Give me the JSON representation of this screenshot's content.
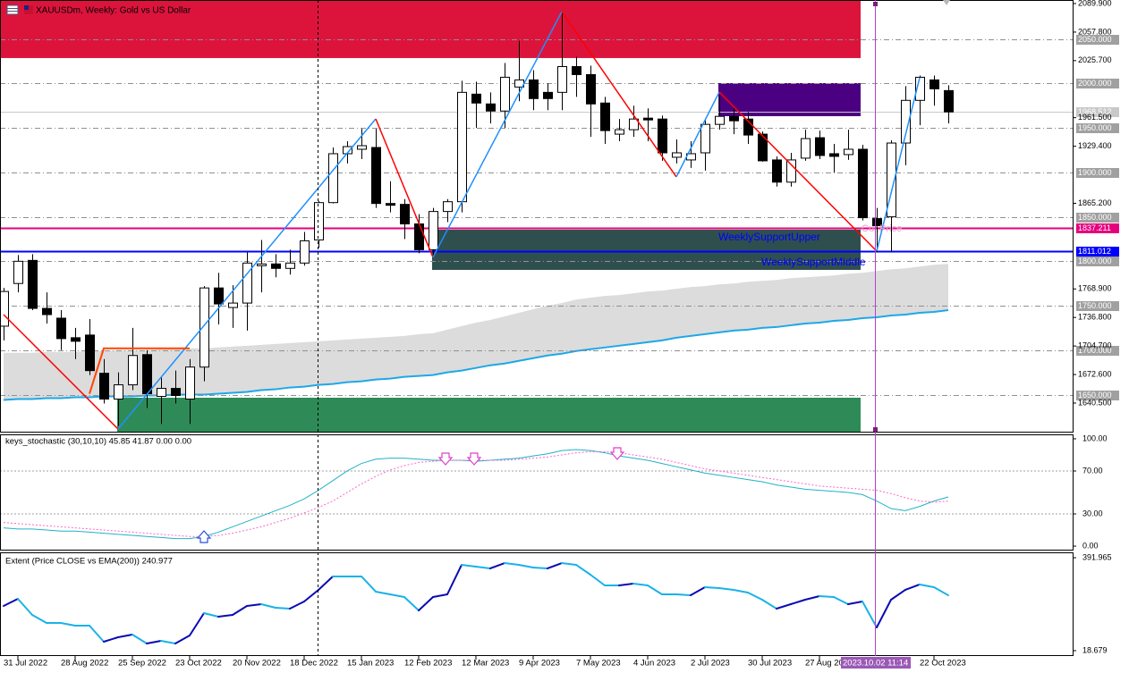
{
  "header": "XAUUSDm, Weekly:  Gold vs US Dollar",
  "chart_data": [
    {
      "type": "candlestick",
      "categories": [
        null,
        "31 Jul 2022",
        null,
        null,
        null,
        "28 Aug 2022",
        null,
        null,
        null,
        "25 Sep 2022",
        null,
        null,
        null,
        "23 Oct 2022",
        null,
        null,
        null,
        "20 Nov 2022",
        null,
        null,
        null,
        "18 Dec 2022",
        null,
        null,
        null,
        "15 Jan 2023",
        null,
        null,
        null,
        "12 Feb 2023",
        null,
        null,
        null,
        "12 Mar 2023",
        null,
        null,
        null,
        "9 Apr 2023",
        null,
        null,
        null,
        "7 May 2023",
        null,
        null,
        null,
        "4 Jun 2023",
        null,
        null,
        null,
        "2 Jul 2023",
        null,
        null,
        null,
        "30 Jul 2023",
        null,
        null,
        null,
        "27 Aug 2023",
        null,
        null,
        null,
        null,
        null,
        null,
        null,
        "22 Oct 2023",
        null
      ],
      "open": [
        1727,
        1775,
        1801,
        1747,
        1736,
        1714,
        1717,
        1674,
        1645,
        1661,
        1695,
        1648,
        1657,
        1645,
        1681,
        1770,
        1748,
        1753,
        1795,
        1797,
        1792,
        1798,
        1824,
        1866,
        1921,
        1926,
        1928,
        1865,
        1864,
        1842,
        1813,
        1856,
        1867,
        1988,
        1977,
        1969,
        1996,
        2004,
        1990,
        1990,
        2019,
        2010,
        1978,
        1943,
        1948,
        1961,
        1960,
        1917,
        1914,
        1922,
        1954,
        1963,
        1960,
        1943,
        1914,
        1889,
        1916,
        1939,
        1921,
        1920,
        1926,
        1848,
        1850,
        1933,
        1981,
        2004,
        1992
      ],
      "high": [
        1770,
        1807,
        1808,
        1765,
        1745,
        1725,
        1735,
        1690,
        1675,
        1725,
        1700,
        1670,
        1677,
        1690,
        1772,
        1787,
        1773,
        1810,
        1824,
        1808,
        1813,
        1833,
        1868,
        1928,
        1935,
        1949,
        1949,
        1890,
        1870,
        1853,
        1860,
        1870,
        2003,
        2002,
        1990,
        2023,
        2048,
        2015,
        2000,
        2081,
        2030,
        2020,
        1985,
        1960,
        1975,
        1972,
        1964,
        1937,
        1935,
        1960,
        1987,
        1973,
        1968,
        1946,
        1918,
        1922,
        1948,
        1947,
        1932,
        1948,
        1931,
        1860,
        1936,
        1997,
        2009,
        2009,
        1998
      ],
      "low": [
        1711,
        1765,
        1745,
        1730,
        1700,
        1690,
        1672,
        1640,
        1615,
        1655,
        1635,
        1617,
        1640,
        1617,
        1665,
        1729,
        1725,
        1722,
        1765,
        1782,
        1785,
        1795,
        1815,
        1865,
        1910,
        1915,
        1860,
        1855,
        1825,
        1809,
        1805,
        1844,
        1855,
        1950,
        1955,
        1950,
        1980,
        1970,
        1970,
        1970,
        1985,
        1940,
        1932,
        1935,
        1940,
        1935,
        1913,
        1910,
        1905,
        1902,
        1948,
        1943,
        1932,
        1912,
        1884,
        1884,
        1913,
        1915,
        1900,
        1914,
        1846,
        1810,
        1810,
        1908,
        1953,
        1975,
        1955
      ],
      "close": [
        1766,
        1800,
        1747,
        1740,
        1713,
        1710,
        1677,
        1645,
        1661,
        1694,
        1651,
        1657,
        1649,
        1681,
        1770,
        1752,
        1753,
        1798,
        1797,
        1792,
        1798,
        1823,
        1866,
        1921,
        1929,
        1930,
        1865,
        1863,
        1842,
        1813,
        1856,
        1867,
        1990,
        1978,
        1969,
        2007,
        2004,
        1983,
        1983,
        2019,
        2010,
        1977,
        1947,
        1948,
        1960,
        1959,
        1922,
        1922,
        1921,
        1954,
        1963,
        1958,
        1942,
        1913,
        1889,
        1914,
        1938,
        1919,
        1918,
        1926,
        1849,
        1840,
        1933,
        1981,
        2007,
        1994,
        1968
      ],
      "ylim": [
        1608.3,
        2093.9
      ],
      "yticks": [
        {
          "value": 2089.9,
          "label": "2089.900"
        },
        {
          "value": 2057.8,
          "label": "2057.800"
        },
        {
          "value": 2025.7,
          "label": "2025.700"
        },
        {
          "value": 1961.5,
          "label": "1961.500"
        },
        {
          "value": 1929.4,
          "label": "1929.400"
        },
        {
          "value": 1865.2,
          "label": "1865.200"
        },
        {
          "value": 1768.9,
          "label": "1768.900"
        },
        {
          "value": 1736.8,
          "label": "1736.800"
        },
        {
          "value": 1704.7,
          "label": "1704.700"
        },
        {
          "value": 1672.6,
          "label": "1672.600"
        },
        {
          "value": 1640.5,
          "label": "1640.500"
        }
      ],
      "levels": [
        {
          "value": 2050,
          "label": "2050.000"
        },
        {
          "value": 2000,
          "label": "2000.000"
        },
        {
          "value": 1950,
          "label": "1950.000"
        },
        {
          "value": 1900,
          "label": "1900.000"
        },
        {
          "value": 1850,
          "label": "1850.000"
        },
        {
          "value": 1800,
          "label": "1800.000"
        },
        {
          "value": 1750,
          "label": "1750.000"
        },
        {
          "value": 1700,
          "label": "1700.000"
        },
        {
          "value": 1650,
          "label": "1650.000"
        }
      ],
      "level_color": "#a0a0a0",
      "lines": [
        {
          "value": 1968.512,
          "label": "1968.512",
          "color": "#c8c8c8"
        },
        {
          "value": 1837.211,
          "label": "1837.211",
          "color": "#e6007e"
        },
        {
          "value": 1811.012,
          "label": "1811.012",
          "color": "#0000ff"
        }
      ],
      "zones": [
        {
          "top": 2093.9,
          "bottom": 2028.6,
          "color": "#dc143c"
        },
        {
          "top": 2000.4,
          "bottom": 1963.2,
          "color": "#4b0082"
        },
        {
          "top": 1835.5,
          "bottom": 1790.3,
          "color": "#2f4f4f",
          "labels": [
            "WeeklySupportUpper",
            "WeeklySupportMiddle"
          ],
          "label_color": "#0000ff"
        },
        {
          "top": 1646.5,
          "bottom": 1608.3,
          "color": "#2e8b57"
        }
      ],
      "band": {
        "color": "#dcdcdc",
        "line_color": "#1ea8e8",
        "upper": [
          1697,
          1697,
          1697,
          1698,
          1698,
          1698,
          1699,
          1699,
          1700,
          1700,
          1700,
          1701,
          1701,
          1702,
          1702,
          1703,
          1704,
          1705,
          1706,
          1707,
          1708,
          1709,
          1710,
          1711,
          1712,
          1713,
          1714,
          1715,
          1716,
          1718,
          1719,
          1723,
          1727,
          1731,
          1734,
          1738,
          1742,
          1746,
          1750,
          1753,
          1757,
          1759,
          1761,
          1762,
          1764,
          1766,
          1767,
          1769,
          1771,
          1772,
          1774,
          1775,
          1777,
          1778,
          1779,
          1781,
          1782,
          1783,
          1784,
          1786,
          1787,
          1789,
          1791,
          1792,
          1794,
          1796,
          1797
        ],
        "lower": [
          1644,
          1645,
          1645,
          1646,
          1646,
          1647,
          1647,
          1648,
          1648,
          1648,
          1649,
          1649,
          1650,
          1650,
          1650,
          1651,
          1652,
          1653,
          1655,
          1656,
          1658,
          1659,
          1661,
          1662,
          1664,
          1665,
          1667,
          1668,
          1670,
          1671,
          1672,
          1675,
          1677,
          1680,
          1683,
          1685,
          1688,
          1691,
          1694,
          1696,
          1699,
          1701,
          1703,
          1705,
          1707,
          1709,
          1711,
          1714,
          1716,
          1718,
          1720,
          1722,
          1723,
          1725,
          1726,
          1728,
          1730,
          1731,
          1733,
          1734,
          1736,
          1737,
          1739,
          1740,
          1742,
          1743,
          1745
        ]
      },
      "zigzag": {
        "x": [
          0,
          8,
          26,
          30,
          39,
          47,
          50,
          61,
          64
        ],
        "values": [
          1740,
          1611.3,
          1960.2,
          1804.4,
          2080.9,
          1894.9,
          1990.4,
          1811.4,
          2006.5
        ],
        "up_color": "#1e90ff",
        "down_color": "#ff0000"
      },
      "step": {
        "x": [
          6,
          7,
          13
        ],
        "values": [
          1651,
          1702,
          1702
        ],
        "color": "#ff4500"
      },
      "price_marker": "Cur.Price",
      "cursor_time": "2023.10.02 11:14"
    },
    {
      "type": "line",
      "title": "keys_stochastic (30,10,10) 45.85 41.87 0.00 0.00",
      "series": [
        {
          "color": "#20b2c8",
          "values": [
            17,
            16,
            16,
            15,
            14,
            14,
            13,
            12,
            11,
            10,
            9,
            8,
            7,
            7,
            9,
            13,
            18,
            23,
            28,
            33,
            38,
            44,
            52,
            61,
            70,
            77,
            81,
            82,
            82,
            81,
            80,
            80,
            80,
            79,
            80,
            81,
            82,
            84,
            86,
            89,
            90,
            89,
            87,
            84,
            82,
            80,
            77,
            74,
            71,
            68,
            66,
            64,
            62,
            60,
            57,
            55,
            53,
            52,
            51,
            50,
            48,
            42,
            35,
            33,
            37,
            42,
            45.85
          ]
        },
        {
          "color": "#ff66cc",
          "dashed": true,
          "values": [
            22,
            21,
            20,
            19,
            18,
            17,
            16,
            15,
            14,
            13,
            12,
            11,
            10,
            9,
            9,
            10,
            12,
            15,
            18,
            22,
            26,
            31,
            36,
            42,
            50,
            58,
            65,
            71,
            75,
            78,
            79,
            80,
            80,
            80,
            80,
            80,
            81,
            82,
            83,
            85,
            87,
            88,
            88,
            87,
            85,
            83,
            81,
            78,
            75,
            72,
            70,
            68,
            66,
            64,
            62,
            60,
            58,
            56,
            55,
            54,
            53,
            52,
            49,
            45,
            42,
            41,
            41.87
          ]
        }
      ],
      "ylim": [
        -3.3,
        103.3
      ],
      "yticks": [
        {
          "value": 100,
          "label": "100.00"
        },
        {
          "value": 70,
          "label": "70.00"
        },
        {
          "value": 30,
          "label": "30.00"
        },
        {
          "value": 0,
          "label": "0.00"
        }
      ]
    },
    {
      "type": "line",
      "title": "Extent (Price CLOSE vs EMA(200)) 240.977",
      "up_color": "#0a0ab4",
      "down_color": "#1ab2e8",
      "values": [
        198.2,
        226.9,
        162.3,
        130.0,
        130.0,
        119.2,
        119.2,
        54.6,
        72.5,
        83.3,
        47.4,
        58.2,
        47.4,
        79.7,
        169.4,
        155.1,
        162.3,
        198.2,
        205.3,
        191.0,
        187.4,
        216.1,
        262.8,
        316.6,
        316.6,
        316.6,
        255.6,
        244.8,
        234.1,
        180.2,
        234.1,
        244.8,
        363.3,
        356.1,
        348.9,
        370.4,
        363.3,
        352.5,
        348.9,
        370.4,
        363.3,
        323.8,
        280.7,
        280.7,
        287.9,
        280.7,
        244.8,
        244.8,
        241.2,
        273.5,
        269.9,
        262.8,
        252.0,
        223.3,
        187.4,
        205.3,
        223.3,
        237.6,
        234.1,
        205.3,
        216.1,
        112.0,
        223.3,
        262.8,
        284.3,
        273.5,
        240.977
      ],
      "ylim": [
        0.73,
        409.9
      ],
      "yticks": [
        391.965,
        18.679
      ]
    }
  ]
}
